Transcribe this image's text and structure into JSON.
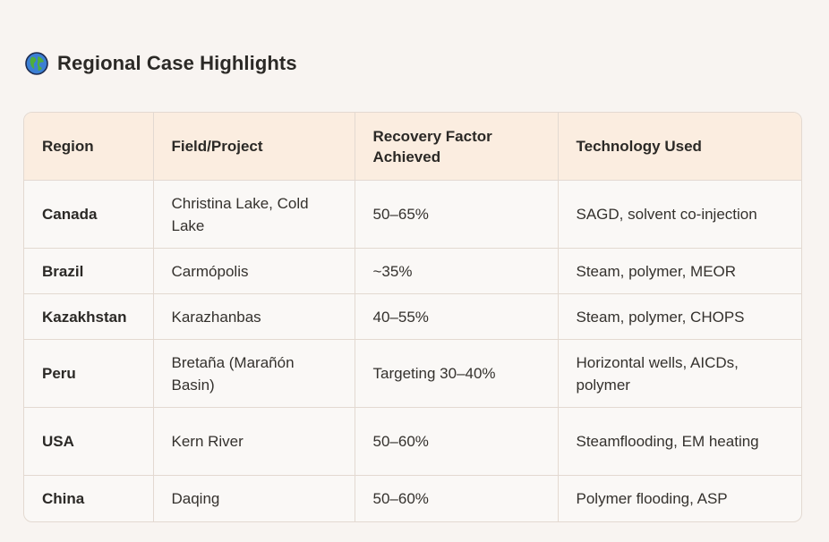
{
  "section": {
    "icon": "globe-icon",
    "title": "Regional Case Highlights"
  },
  "table": {
    "headers": [
      "Region",
      "Field/Project",
      "Recovery Factor Achieved",
      "Technology Used"
    ],
    "rows": [
      {
        "region": "Canada",
        "field": "Christina Lake, Cold Lake",
        "recovery": "50–65%",
        "technology": "SAGD, solvent co-injection"
      },
      {
        "region": "Brazil",
        "field": "Carmópolis",
        "recovery": "~35%",
        "technology": "Steam, polymer, MEOR"
      },
      {
        "region": "Kazakhstan",
        "field": "Karazhanbas",
        "recovery": "40–55%",
        "technology": "Steam, polymer, CHOPS"
      },
      {
        "region": "Peru",
        "field": "Bretaña (Marañón Basin)",
        "recovery": "Targeting 30–40%",
        "technology": "Horizontal wells, AICDs, polymer"
      },
      {
        "region": "USA",
        "field": "Kern River",
        "recovery": "50–60%",
        "technology": "Steamflooding, EM heating"
      },
      {
        "region": "China",
        "field": "Daqing",
        "recovery": "50–60%",
        "technology": "Polymer flooding, ASP"
      }
    ]
  },
  "colors": {
    "background": "#f8f4f1",
    "header_bg": "#fbede0",
    "border": "#e3d9d1"
  }
}
